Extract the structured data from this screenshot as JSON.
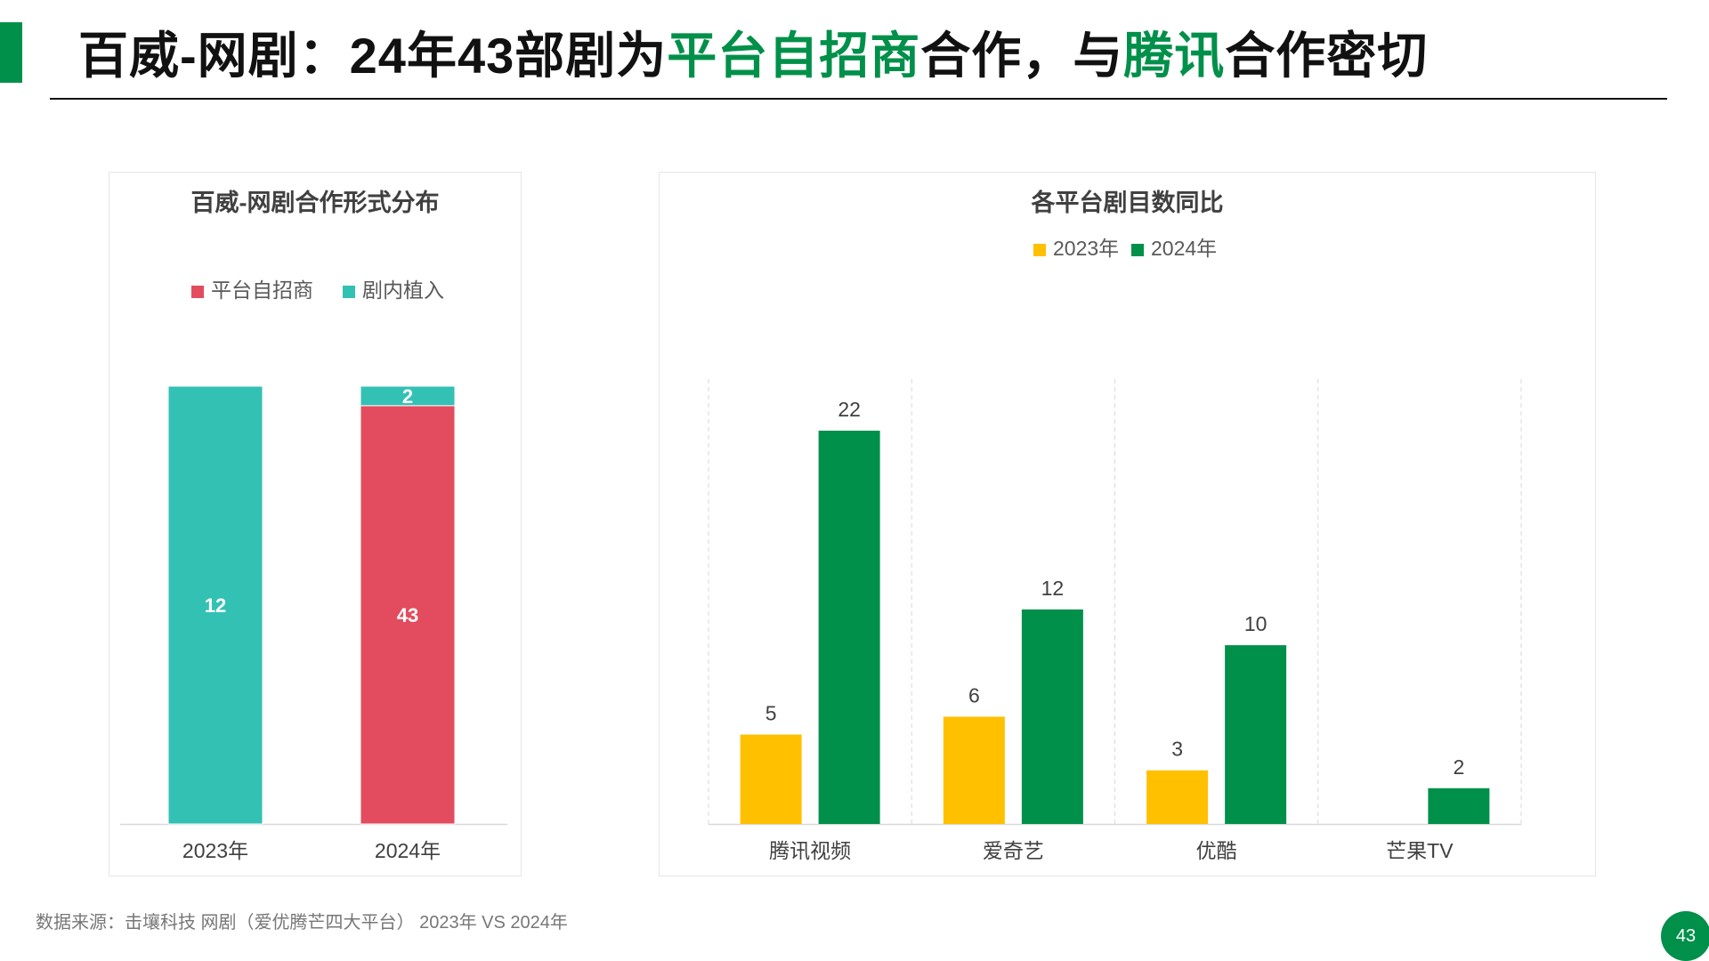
{
  "header": {
    "title_part1": "百威-网剧：24年43部剧为",
    "title_hl1": "平台自招商",
    "title_part2": "合作，与",
    "title_hl2": "腾讯",
    "title_part3": "合作密切"
  },
  "footer": {
    "source": "数据来源：击壤科技  网剧（爱优腾芒四大平台） 2023年 VS 2024年",
    "page_number": "43"
  },
  "colors": {
    "accent": "#00904a",
    "teal": "#33c1b4",
    "red": "#e24c5e",
    "yellow": "#ffc000",
    "green": "#00904a"
  },
  "chart_data": [
    {
      "type": "bar",
      "stacked": true,
      "title": "百威-网剧合作形式分布",
      "categories": [
        "2023年",
        "2024年"
      ],
      "series": [
        {
          "name": "平台自招商",
          "color": "#e24c5e",
          "values": [
            0,
            43
          ]
        },
        {
          "name": "剧内植入",
          "color": "#33c1b4",
          "values": [
            12,
            2
          ]
        }
      ],
      "normalized": true,
      "legend": "top-center",
      "grid": false
    },
    {
      "type": "bar",
      "title": "各平台剧目数同比",
      "categories": [
        "腾讯视频",
        "爱奇艺",
        "优酷",
        "芒果TV"
      ],
      "series": [
        {
          "name": "2023年",
          "color": "#ffc000",
          "values": [
            5,
            6,
            3,
            0
          ]
        },
        {
          "name": "2024年",
          "color": "#00904a",
          "values": [
            22,
            12,
            10,
            2
          ]
        }
      ],
      "ylim": [
        0,
        25
      ],
      "legend": "top-center",
      "grid": "vertical-dashed-separators"
    }
  ]
}
